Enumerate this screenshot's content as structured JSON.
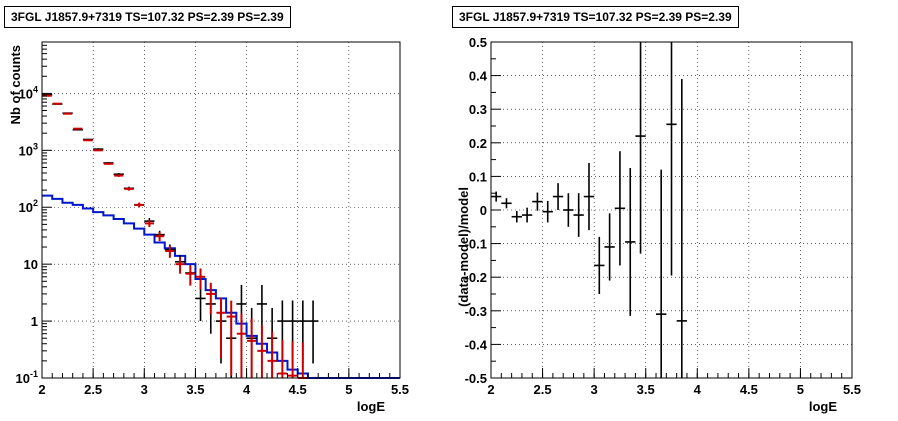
{
  "chart_data": [
    {
      "type": "line",
      "title": "3FGL J1857.9+7319 TS=107.32 PS=2.39 PS=2.39",
      "xlabel": "logE",
      "ylabel": "Nb of counts",
      "xlim": [
        2,
        5.5
      ],
      "ylim": [
        0.1,
        80000
      ],
      "yscale": "log",
      "grid": true,
      "xticks": [
        "2",
        "2.5",
        "3",
        "3.5",
        "4",
        "4.5",
        "5",
        "5.5"
      ],
      "yticks": [
        "10^-1",
        "1",
        "10",
        "10^2",
        "10^3",
        "10^4"
      ],
      "series": [
        {
          "kind": "data-points",
          "color": "#000000",
          "x": [
            2.05,
            2.15,
            2.25,
            2.35,
            2.45,
            2.55,
            2.65,
            2.75,
            2.85,
            2.95,
            3.05,
            3.15,
            3.25,
            3.35,
            3.45,
            3.55,
            3.65,
            3.75,
            3.85,
            3.95,
            4.05,
            4.15,
            4.25,
            4.35,
            4.45,
            4.55,
            4.65
          ],
          "y": [
            9500,
            6500,
            4500,
            2300,
            1550,
            1050,
            600,
            380,
            215,
            110,
            57,
            33,
            18,
            11,
            7,
            2.5,
            2,
            1,
            0.5,
            2,
            0.5,
            2,
            0.5,
            1,
            1,
            1,
            1
          ],
          "yerr_low": [
            95,
            80,
            65,
            48,
            39,
            32,
            24,
            19,
            15,
            10,
            7.5,
            5.6,
            4.2,
            3.3,
            2.6,
            1.5,
            1.4,
            0.82,
            0.41,
            1.4,
            0.41,
            1.4,
            0.41,
            0.82,
            0.82,
            0.82,
            0.82
          ],
          "yerr_high": [
            95,
            80,
            65,
            48,
            39,
            32,
            24,
            19,
            15,
            10,
            7.5,
            5.6,
            4.2,
            3.3,
            2.6,
            2.5,
            2.3,
            1.3,
            1.2,
            2.3,
            1.2,
            2.3,
            1.2,
            1.3,
            1.3,
            1.3,
            1.3
          ]
        },
        {
          "kind": "model-points",
          "color": "#cc0000",
          "x": [
            2.05,
            2.15,
            2.25,
            2.35,
            2.45,
            2.55,
            2.65,
            2.75,
            2.85,
            2.95,
            3.05,
            3.15,
            3.25,
            3.35,
            3.45,
            3.55,
            3.65,
            3.75,
            3.85,
            3.95,
            4.05,
            4.15,
            4.25,
            4.35,
            4.45,
            4.55
          ],
          "y": [
            9100,
            6600,
            4400,
            2400,
            1500,
            1000,
            580,
            360,
            210,
            110,
            52,
            31,
            17,
            10,
            6.8,
            6,
            3,
            1.4,
            1.2,
            0.6,
            0.45,
            0.3,
            0.2,
            0.12,
            0.11,
            0.1
          ],
          "yerr_low": [
            95,
            81,
            66,
            49,
            39,
            32,
            24,
            19,
            14.5,
            10.5,
            7.2,
            5.6,
            4.1,
            3.2,
            2.6,
            2.4,
            1.7,
            1.18,
            1.09,
            0.57,
            0.44,
            0.3,
            0.2,
            0.12,
            0.11,
            0.1
          ],
          "yerr_high": [
            95,
            81,
            66,
            49,
            39,
            32,
            24,
            19,
            14.5,
            10.5,
            7.2,
            5.6,
            4.1,
            3.2,
            2.6,
            2.4,
            1.7,
            1.18,
            1.09,
            0.77,
            0.67,
            0.55,
            0.45,
            0.35,
            0.33,
            0.32
          ]
        },
        {
          "kind": "model-histogram",
          "color": "#0018cc",
          "x_edges": [
            2.0,
            2.1,
            2.2,
            2.3,
            2.4,
            2.5,
            2.6,
            2.7,
            2.8,
            2.9,
            3.0,
            3.1,
            3.2,
            3.3,
            3.4,
            3.5,
            3.6,
            3.7,
            3.8,
            3.9,
            4.0,
            4.1,
            4.2,
            4.3,
            4.4,
            4.5,
            4.6,
            4.7,
            5.5
          ],
          "values": [
            160,
            140,
            120,
            110,
            95,
            82,
            72,
            62,
            52,
            42,
            33,
            24,
            19,
            14,
            10,
            5.5,
            3.5,
            2.5,
            1.4,
            0.9,
            0.55,
            0.4,
            0.28,
            0.2,
            0.14,
            0.12,
            0.1,
            0.1
          ]
        }
      ]
    },
    {
      "type": "scatter",
      "title": "3FGL J1857.9+7319 TS=107.32 PS=2.39 PS=2.39",
      "xlabel": "logE",
      "ylabel": "(data-model)/model",
      "xlim": [
        2,
        5.5
      ],
      "ylim": [
        -0.5,
        0.5
      ],
      "grid": true,
      "xticks": [
        "2",
        "2.5",
        "3",
        "3.5",
        "4",
        "4.5",
        "5",
        "5.5"
      ],
      "yticks": [
        "-0.5",
        "-0.4",
        "-0.3",
        "-0.2",
        "-0.1",
        "0",
        "0.1",
        "0.2",
        "0.3",
        "0.4",
        "0.5"
      ],
      "series": [
        {
          "color": "#000000",
          "x": [
            2.05,
            2.15,
            2.25,
            2.35,
            2.45,
            2.55,
            2.65,
            2.75,
            2.85,
            2.95,
            3.05,
            3.15,
            3.25,
            3.35,
            3.45,
            3.65,
            3.75,
            3.85
          ],
          "y": [
            0.04,
            0.02,
            -0.02,
            -0.015,
            0.025,
            -0.005,
            0.04,
            0.0,
            -0.015,
            0.04,
            -0.165,
            -0.11,
            0.005,
            -0.095,
            0.22,
            -0.31,
            0.255,
            -0.33
          ],
          "yerr": [
            0.015,
            0.015,
            0.017,
            0.022,
            0.027,
            0.032,
            0.04,
            0.05,
            0.065,
            0.1,
            0.085,
            0.1,
            0.17,
            0.22,
            0.35,
            0.43,
            0.45,
            0.72
          ]
        }
      ]
    }
  ]
}
